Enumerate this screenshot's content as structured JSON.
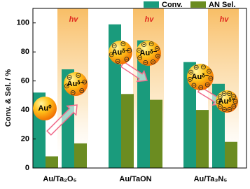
{
  "chart_data": {
    "type": "bar",
    "categories": [
      "Au/Ta₂O₅",
      null,
      "Au/TaON",
      null,
      "Au/Ta₃N₅",
      null
    ],
    "series": [
      {
        "name": "Conv.",
        "color": "#1a9b7c",
        "values": [
          52,
          68,
          99,
          88,
          73,
          58
        ]
      },
      {
        "name": "AN Sel.",
        "color": "#6b8c21",
        "values": [
          8,
          17,
          51,
          47,
          40,
          18
        ]
      }
    ],
    "ylabel": "Conv. & Sel. / %",
    "ylim": [
      0,
      110
    ],
    "yticks": [
      0,
      20,
      40,
      60,
      80,
      100
    ],
    "legend": "top-right",
    "annotations": [
      "hv",
      "hv",
      "hv"
    ],
    "particles": [
      "Au⁰",
      "Auᵟ⁻",
      "Auᵟ⁻",
      "Auᵟ⁻",
      "Auᵟ⁻",
      "Auᵟ⁻"
    ]
  }
}
